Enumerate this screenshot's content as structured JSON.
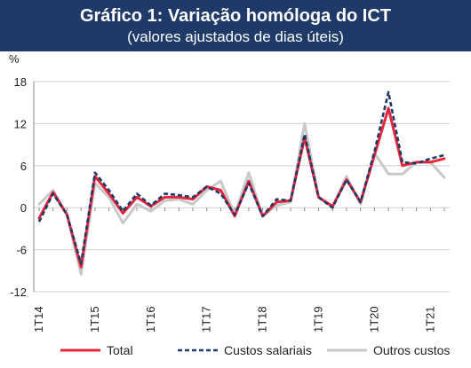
{
  "title": "Gráfico 1: Variação homóloga do ICT",
  "subtitle": "(valores ajustados de dias úteis)",
  "chart_data": {
    "type": "line",
    "ylabel": "%",
    "ylim": [
      -12,
      18
    ],
    "yticks": [
      18,
      12,
      6,
      0,
      -6,
      -12
    ],
    "x_tick_labels": [
      "1T14",
      "1T15",
      "1T16",
      "1T17",
      "1T18",
      "1T19",
      "1T20",
      "1T21"
    ],
    "x_tick_indices": [
      0,
      4,
      8,
      12,
      16,
      20,
      24,
      28
    ],
    "n_points": 30,
    "grid": "horizontal",
    "legend_position": "bottom",
    "series": [
      {
        "name": "Total",
        "color": "#e8253b",
        "style": "solid",
        "values": [
          -1.5,
          2.2,
          -1.0,
          -8.5,
          4.5,
          2.0,
          -0.8,
          1.5,
          0.2,
          1.5,
          1.5,
          1.2,
          3.0,
          2.5,
          -1.2,
          3.8,
          -1.2,
          0.8,
          1.0,
          10.0,
          1.5,
          0.2,
          4.0,
          0.8,
          7.5,
          14.2,
          6.0,
          6.5,
          6.5,
          7.0
        ]
      },
      {
        "name": "Custos salariais",
        "color": "#1f3a68",
        "style": "dashed",
        "values": [
          -2.0,
          2.0,
          -1.0,
          -8.0,
          5.0,
          2.5,
          -0.5,
          2.0,
          0.3,
          2.0,
          1.8,
          1.5,
          3.0,
          2.0,
          -1.0,
          3.5,
          -1.2,
          1.2,
          1.0,
          10.5,
          1.5,
          0.0,
          4.0,
          0.8,
          8.0,
          16.5,
          6.5,
          6.3,
          7.0,
          7.5
        ]
      },
      {
        "name": "Outros custos",
        "color": "#c8c8c8",
        "style": "solid",
        "values": [
          0.5,
          2.5,
          -1.0,
          -9.5,
          3.5,
          1.5,
          -2.2,
          0.5,
          -0.5,
          1.0,
          1.2,
          0.5,
          2.5,
          3.8,
          -1.0,
          5.0,
          -1.2,
          0.3,
          0.8,
          12.0,
          1.5,
          0.0,
          4.5,
          0.5,
          7.8,
          4.8,
          4.8,
          6.5,
          6.5,
          4.3
        ]
      }
    ]
  }
}
